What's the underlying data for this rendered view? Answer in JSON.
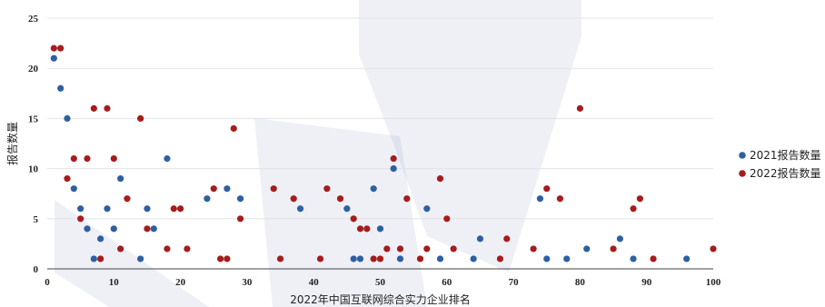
{
  "chart_data": {
    "type": "scatter",
    "title": "",
    "xlabel": "2022年中国互联网综合实力企业排名",
    "ylabel": "报告数量",
    "xlim": [
      0,
      100
    ],
    "ylim": [
      0,
      25
    ],
    "x_ticks": [
      "0",
      "10",
      "20",
      "30",
      "40",
      "50",
      "60",
      "70",
      "80",
      "90",
      "100"
    ],
    "y_ticks": [
      "0",
      "5",
      "10",
      "15",
      "20",
      "25"
    ],
    "grid": "horizontal",
    "legend_position": "right",
    "series": [
      {
        "name": "2021报告数量",
        "color": "#2e5fa3",
        "points": [
          [
            1,
            21
          ],
          [
            2,
            18
          ],
          [
            3,
            15
          ],
          [
            4,
            8
          ],
          [
            5,
            6
          ],
          [
            6,
            4
          ],
          [
            7,
            1
          ],
          [
            8,
            3
          ],
          [
            9,
            6
          ],
          [
            10,
            4
          ],
          [
            11,
            9
          ],
          [
            14,
            1
          ],
          [
            15,
            6
          ],
          [
            16,
            4
          ],
          [
            18,
            11
          ],
          [
            24,
            7
          ],
          [
            27,
            8
          ],
          [
            29,
            7
          ],
          [
            38,
            6
          ],
          [
            45,
            6
          ],
          [
            46,
            1
          ],
          [
            47,
            1
          ],
          [
            49,
            8
          ],
          [
            50,
            4
          ],
          [
            52,
            10
          ],
          [
            53,
            1
          ],
          [
            57,
            6
          ],
          [
            59,
            1
          ],
          [
            64,
            1
          ],
          [
            65,
            3
          ],
          [
            74,
            7
          ],
          [
            75,
            1
          ],
          [
            78,
            1
          ],
          [
            81,
            2
          ],
          [
            86,
            3
          ],
          [
            88,
            1
          ],
          [
            96,
            1
          ]
        ]
      },
      {
        "name": "2022报告数量",
        "color": "#a61c1c",
        "points": [
          [
            1,
            22
          ],
          [
            2,
            22
          ],
          [
            3,
            9
          ],
          [
            4,
            11
          ],
          [
            5,
            5
          ],
          [
            6,
            11
          ],
          [
            7,
            16
          ],
          [
            8,
            1
          ],
          [
            9,
            16
          ],
          [
            10,
            11
          ],
          [
            11,
            2
          ],
          [
            12,
            7
          ],
          [
            14,
            15
          ],
          [
            15,
            4
          ],
          [
            18,
            2
          ],
          [
            19,
            6
          ],
          [
            20,
            6
          ],
          [
            21,
            2
          ],
          [
            25,
            8
          ],
          [
            26,
            1
          ],
          [
            27,
            1
          ],
          [
            28,
            14
          ],
          [
            29,
            5
          ],
          [
            34,
            8
          ],
          [
            35,
            1
          ],
          [
            37,
            7
          ],
          [
            41,
            1
          ],
          [
            42,
            8
          ],
          [
            44,
            7
          ],
          [
            46,
            5
          ],
          [
            47,
            4
          ],
          [
            48,
            4
          ],
          [
            49,
            1
          ],
          [
            50,
            1
          ],
          [
            51,
            2
          ],
          [
            52,
            11
          ],
          [
            53,
            2
          ],
          [
            54,
            7
          ],
          [
            56,
            1
          ],
          [
            57,
            2
          ],
          [
            59,
            9
          ],
          [
            60,
            5
          ],
          [
            61,
            2
          ],
          [
            68,
            1
          ],
          [
            69,
            3
          ],
          [
            73,
            2
          ],
          [
            75,
            8
          ],
          [
            77,
            7
          ],
          [
            80,
            16
          ],
          [
            85,
            2
          ],
          [
            88,
            6
          ],
          [
            89,
            7
          ],
          [
            91,
            1
          ],
          [
            100,
            2
          ]
        ]
      }
    ]
  }
}
